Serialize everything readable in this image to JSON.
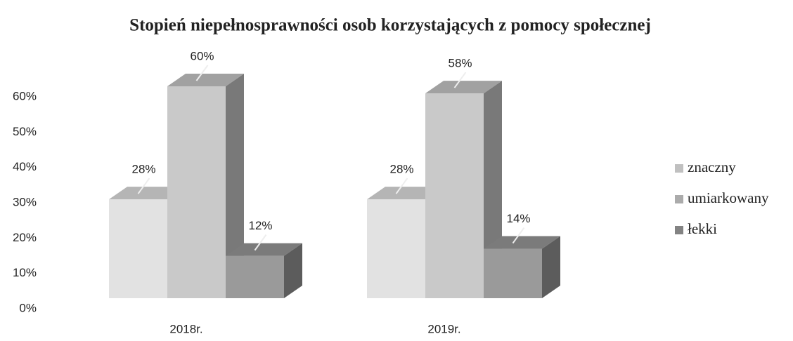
{
  "chart_data": {
    "type": "bar3d",
    "title": "Stopień niepełnosprawności osob korzystających z pomocy społecznej",
    "categories": [
      "2018r.",
      "2019r."
    ],
    "series": [
      {
        "name": "znaczny",
        "color": "#e2e2e2",
        "values": [
          28,
          28
        ],
        "value_labels": [
          "28%",
          "28%"
        ]
      },
      {
        "name": "umiarkowany",
        "color": "#c9c9c9",
        "values": [
          60,
          58
        ],
        "value_labels": [
          "60%",
          "58%"
        ]
      },
      {
        "name": "łekki",
        "color": "#9a9a9a",
        "values": [
          12,
          14
        ],
        "value_labels": [
          "12%",
          "14%"
        ]
      }
    ],
    "ylim": [
      0,
      60
    ],
    "yticks": [
      {
        "value": 0,
        "label": "0%"
      },
      {
        "value": 10,
        "label": "10%"
      },
      {
        "value": 20,
        "label": "20%"
      },
      {
        "value": 30,
        "label": "30%"
      },
      {
        "value": 40,
        "label": "40%"
      },
      {
        "value": 50,
        "label": "50%"
      },
      {
        "value": 60,
        "label": "60%"
      }
    ],
    "legend": "right",
    "grid": false
  }
}
